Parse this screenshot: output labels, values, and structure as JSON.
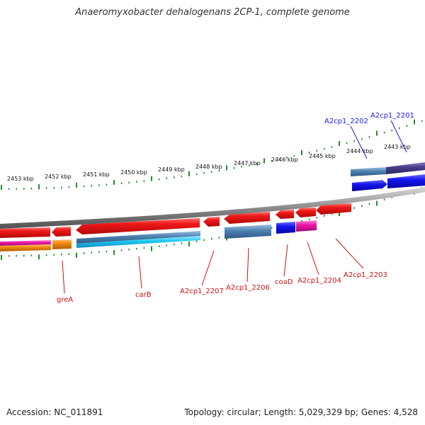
{
  "title": "Anaeromyxobacter dehalogenans 2CP-1, complete genome",
  "footer": {
    "accession": "Accession: NC_011891",
    "summary": "Topology: circular; Length: 5,029,329 bp; Genes: 4,528"
  },
  "colors": {
    "backbone": "#8a8a8a",
    "tick": "#2a8a2a",
    "cds": "#e81414",
    "label_red": "#cc1111",
    "label_blue": "#1a1aee",
    "trna_blue": "#1818ee",
    "steel": "#4a7fb0",
    "cyan": "#1ec6f0",
    "magenta": "#ee18a8",
    "orange": "#f08a10",
    "purple": "#4a3f8a"
  },
  "kbp_scale": [
    "2453 kbp",
    "2452 kbp",
    "2451 kbp",
    "2450 kbp",
    "2449 kbp",
    "2448 kbp",
    "2447 kbp",
    "2446 kbp",
    "2445 kbp",
    "2444 kbp",
    "2443 kbp"
  ],
  "gene_labels": {
    "greA": "greA",
    "carB": "carB",
    "a2cp1_2207": "A2cp1_2207",
    "a2cp1_2206": "A2cp1_2206",
    "coaD": "coaD",
    "a2cp1_2204": "A2cp1_2204",
    "a2cp1_2203": "A2cp1_2203",
    "a2cp1_2202": "A2cp1_2202",
    "a2cp1_2201": "A2cp1_2201"
  }
}
